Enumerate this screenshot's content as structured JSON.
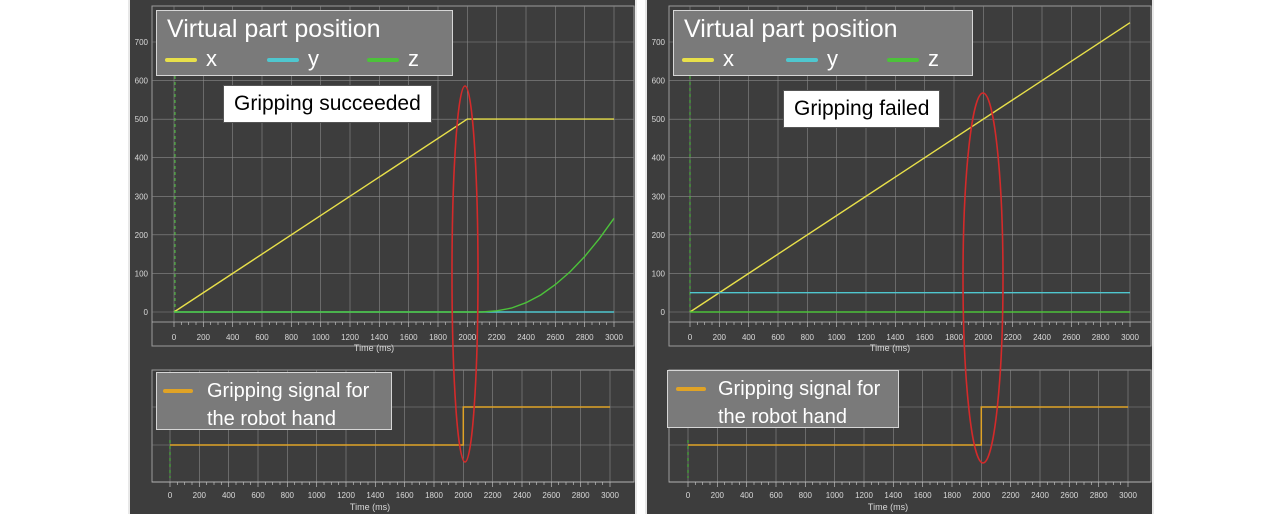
{
  "colors": {
    "x": "#e8e04a",
    "y": "#4fc7cf",
    "z": "#4cc23a",
    "signal": "#e0a326",
    "marker": "#d42a2a"
  },
  "panels": [
    {
      "legend_title": "Virtual part position",
      "legend_labels": [
        "x",
        "y",
        "z"
      ],
      "callout": "Gripping succeeded",
      "signal_label_line1": "Gripping signal for",
      "signal_label_line2": "the robot hand"
    },
    {
      "legend_title": "Virtual part position",
      "legend_labels": [
        "x",
        "y",
        "z"
      ],
      "callout": "Gripping failed",
      "signal_label_line1": "Gripping signal for",
      "signal_label_line2": "the robot hand"
    }
  ],
  "chart_data": [
    {
      "type": "line",
      "title": "Virtual part position",
      "annotation": "Gripping succeeded",
      "xlabel": "Time (ms)",
      "xlim": [
        0,
        3000
      ],
      "ylim": [
        0,
        750
      ],
      "x_ticks": [
        0,
        200,
        400,
        600,
        800,
        1000,
        1200,
        1400,
        1600,
        1800,
        2000,
        2200,
        2400,
        2600,
        2800,
        3000
      ],
      "y_ticks": [
        0,
        100,
        200,
        300,
        400,
        500,
        600,
        700
      ],
      "grid": true,
      "legend": "top-left",
      "series": [
        {
          "name": "x",
          "points": [
            [
              0,
              0
            ],
            [
              2000,
              500
            ],
            [
              3000,
              500
            ]
          ]
        },
        {
          "name": "y",
          "points": [
            [
              0,
              0
            ],
            [
              3000,
              0
            ]
          ]
        },
        {
          "name": "z",
          "points": [
            [
              0,
              0
            ],
            [
              2100,
              0
            ],
            [
              2200,
              3
            ],
            [
              2300,
              10
            ],
            [
              2400,
              24
            ],
            [
              2500,
              44
            ],
            [
              2600,
              71
            ],
            [
              2700,
              104
            ],
            [
              2800,
              144
            ],
            [
              2900,
              190
            ],
            [
              3000,
              243
            ]
          ]
        }
      ]
    },
    {
      "type": "line",
      "title": "Gripping signal for the robot hand",
      "xlabel": "Time (ms)",
      "xlim": [
        0,
        3000
      ],
      "x_ticks": [
        0,
        200,
        400,
        600,
        800,
        1000,
        1200,
        1400,
        1600,
        1800,
        2000,
        2200,
        2400,
        2600,
        2800,
        3000
      ],
      "grid": true,
      "legend": "top-left",
      "series": [
        {
          "name": "Gripping signal for the robot hand",
          "points": [
            [
              0,
              0
            ],
            [
              2000,
              0
            ],
            [
              2000,
              1
            ],
            [
              3000,
              1
            ]
          ]
        }
      ]
    },
    {
      "type": "line",
      "title": "Virtual part position",
      "annotation": "Gripping failed",
      "xlabel": "Time (ms)",
      "xlim": [
        0,
        3000
      ],
      "ylim": [
        0,
        750
      ],
      "x_ticks": [
        0,
        200,
        400,
        600,
        800,
        1000,
        1200,
        1400,
        1600,
        1800,
        2000,
        2200,
        2400,
        2600,
        2800,
        3000
      ],
      "y_ticks": [
        0,
        100,
        200,
        300,
        400,
        500,
        600,
        700
      ],
      "grid": true,
      "legend": "top-left",
      "series": [
        {
          "name": "x",
          "points": [
            [
              0,
              0
            ],
            [
              3000,
              750
            ]
          ]
        },
        {
          "name": "y",
          "points": [
            [
              0,
              50
            ],
            [
              3000,
              50
            ]
          ]
        },
        {
          "name": "z",
          "points": [
            [
              0,
              0
            ],
            [
              3000,
              0
            ]
          ]
        }
      ]
    },
    {
      "type": "line",
      "title": "Gripping signal for the robot hand",
      "xlabel": "Time (ms)",
      "xlim": [
        0,
        3000
      ],
      "x_ticks": [
        0,
        200,
        400,
        600,
        800,
        1000,
        1200,
        1400,
        1600,
        1800,
        2000,
        2200,
        2400,
        2600,
        2800,
        3000
      ],
      "grid": true,
      "legend": "top-left",
      "series": [
        {
          "name": "Gripping signal for the robot hand",
          "points": [
            [
              0,
              0
            ],
            [
              2000,
              0
            ],
            [
              2000,
              1
            ],
            [
              3000,
              1
            ]
          ]
        }
      ]
    }
  ]
}
